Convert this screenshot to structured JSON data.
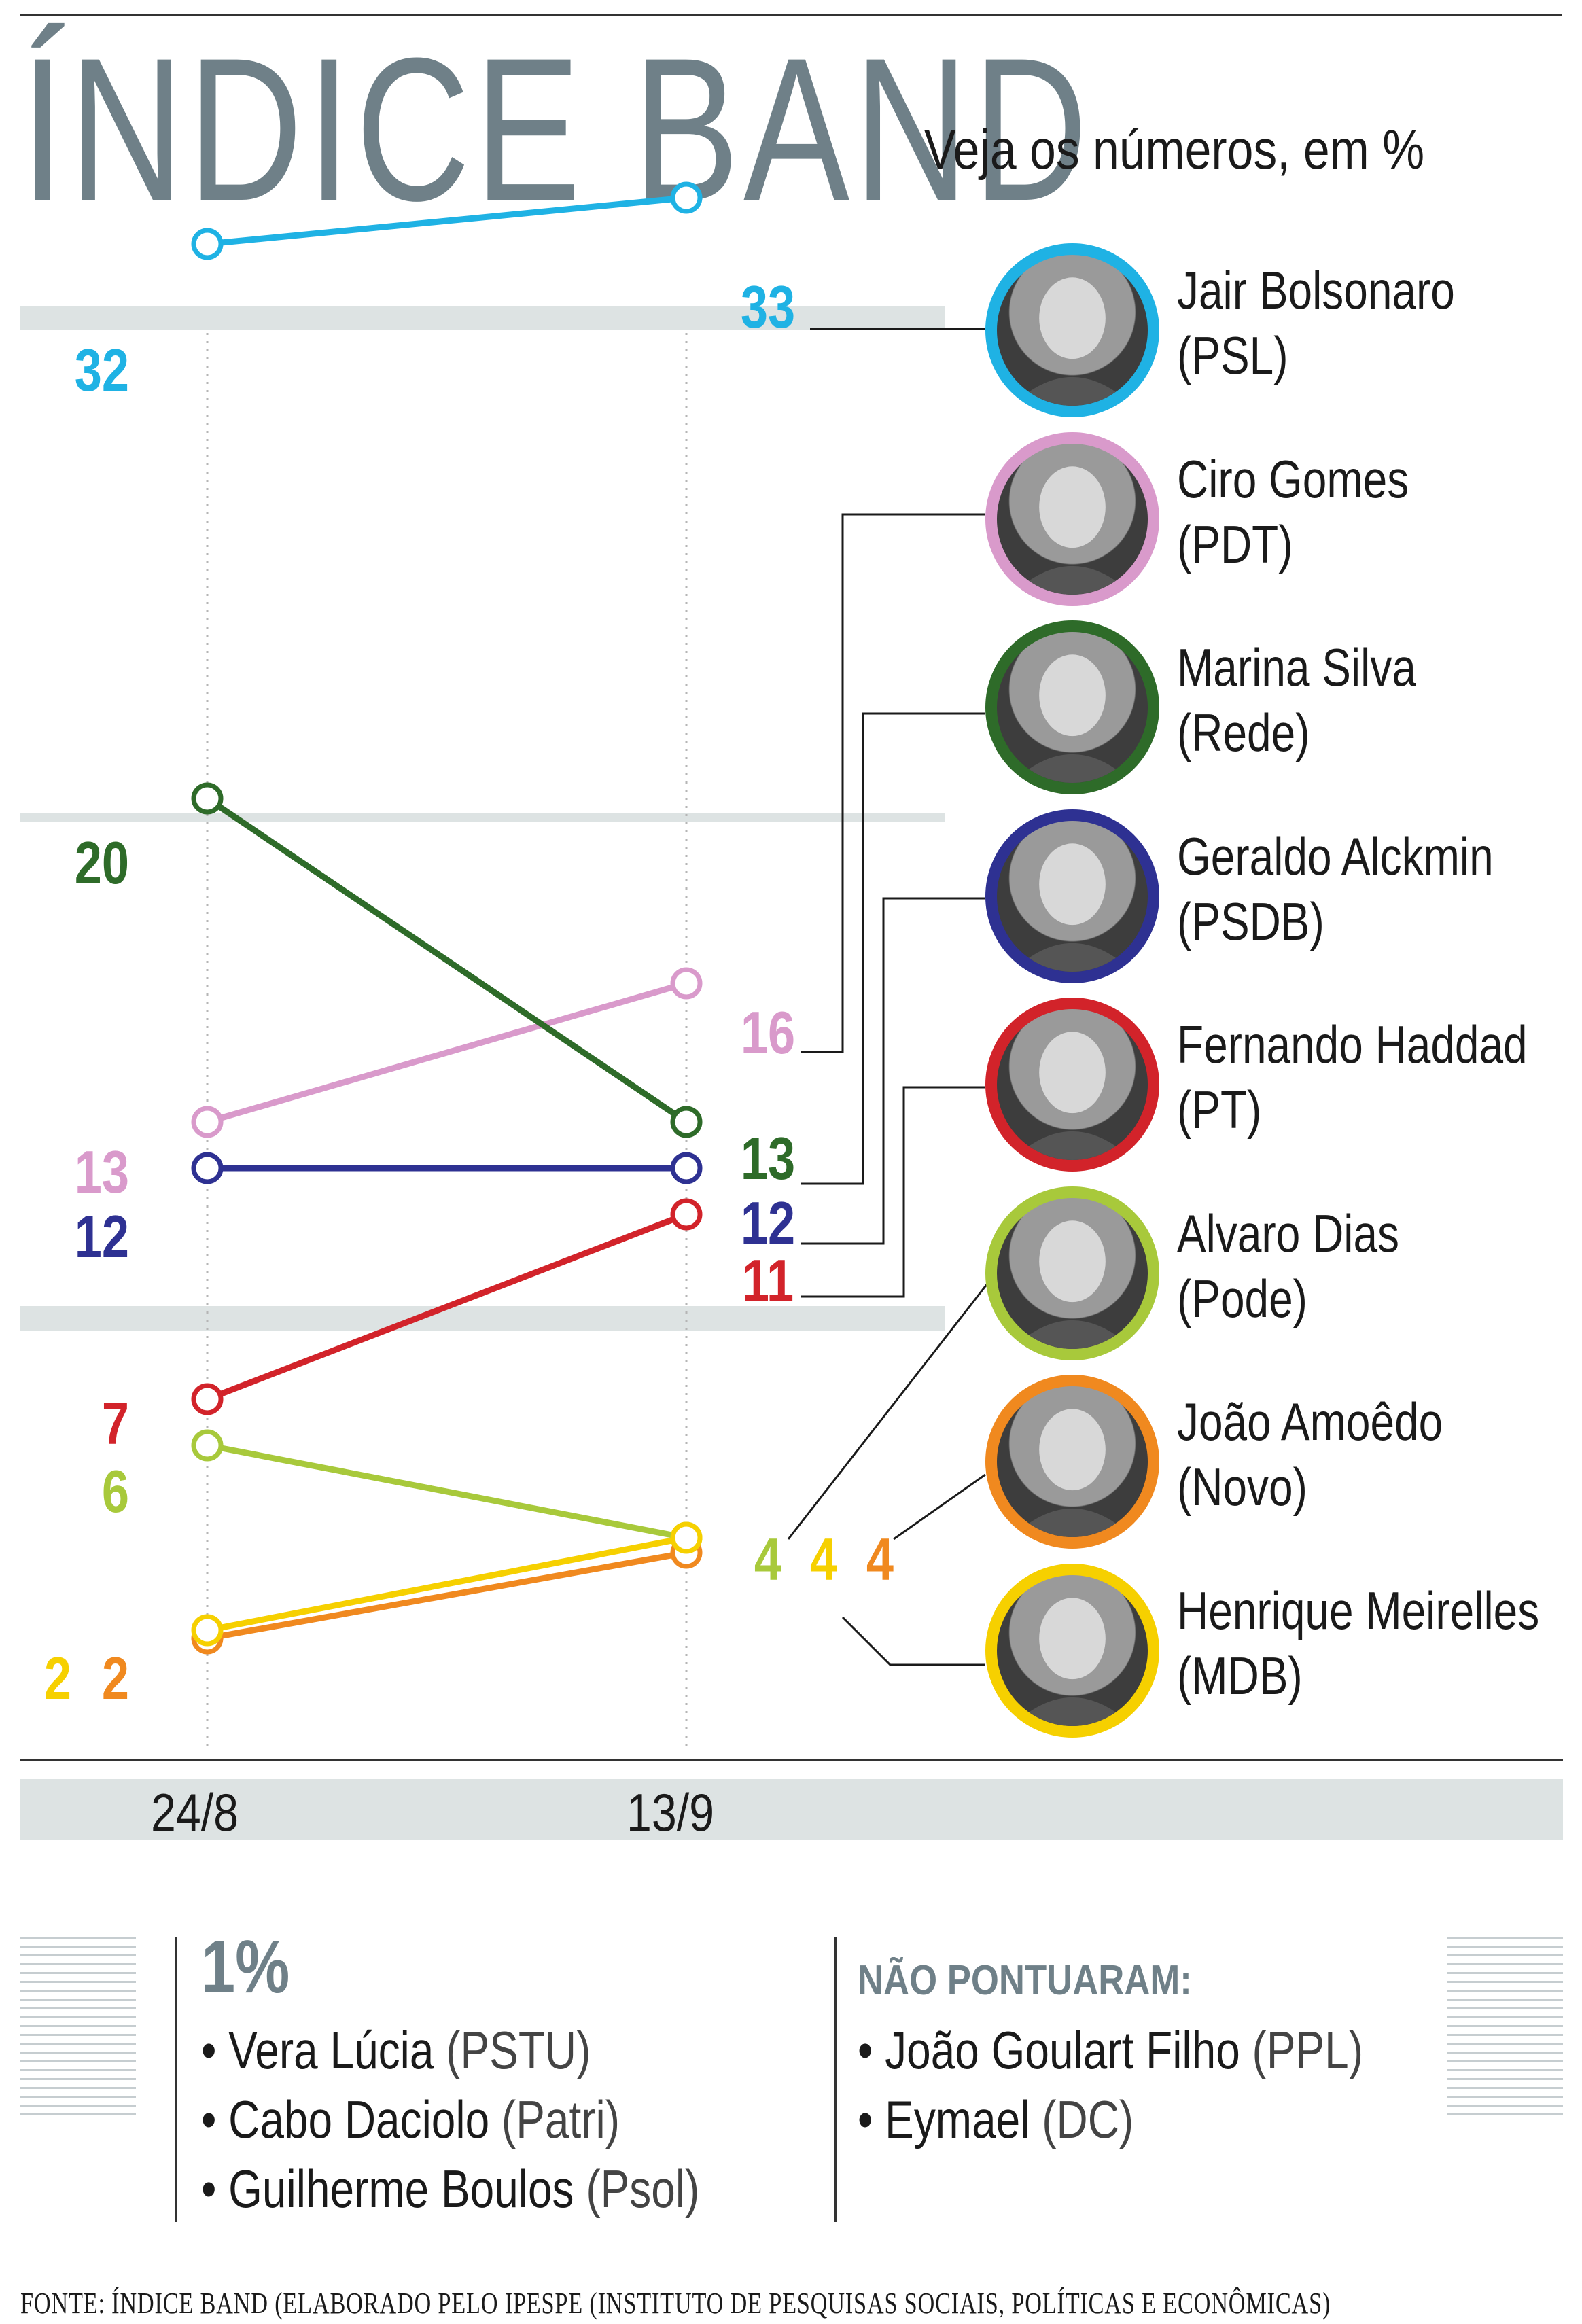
{
  "title": "ÍNDICE BAND",
  "subtitle": "Veja os números, em %",
  "chart_data": {
    "type": "line",
    "unit": "%",
    "categories": [
      "24/8",
      "13/9"
    ],
    "series": [
      {
        "name": "Jair Bolsonaro",
        "party": "(PSL)",
        "color": "#1fb2e4",
        "values": [
          32,
          33
        ],
        "labels": [
          "32",
          "33"
        ]
      },
      {
        "name": "Ciro Gomes",
        "party": "(PDT)",
        "color": "#d99acb",
        "values": [
          13,
          16
        ],
        "labels": [
          "13",
          "16"
        ]
      },
      {
        "name": "Marina Silva",
        "party": "(Rede)",
        "color": "#2e6b29",
        "values": [
          20,
          13
        ],
        "labels": [
          "20",
          "13"
        ]
      },
      {
        "name": "Geraldo Alckmin",
        "party": "(PSDB)",
        "color": "#2e3192",
        "values": [
          12,
          12
        ],
        "labels": [
          "12",
          "12"
        ]
      },
      {
        "name": "Fernando Haddad",
        "party": "(PT)",
        "color": "#d2232a",
        "values": [
          7,
          11
        ],
        "labels": [
          "7",
          "11"
        ]
      },
      {
        "name": "Alvaro Dias",
        "party": "(Pode)",
        "color": "#a8c93b",
        "values": [
          6,
          4
        ],
        "labels": [
          "6",
          "4"
        ]
      },
      {
        "name": "João Amoêdo",
        "party": "(Novo)",
        "color": "#f0891f",
        "values": [
          2,
          4
        ],
        "labels": [
          "2",
          "4"
        ]
      },
      {
        "name": "Henrique Meirelles",
        "party": "(MDB)",
        "color": "#f6d000",
        "values": [
          2,
          4
        ],
        "labels": [
          "2",
          "4"
        ]
      }
    ]
  },
  "notes": {
    "one_pct": {
      "heading": "1%",
      "items": [
        {
          "name": "Vera Lúcia",
          "party": "(PSTU)"
        },
        {
          "name": "Cabo Daciolo",
          "party": "(Patri)"
        },
        {
          "name": "Guilherme Boulos",
          "party": "(Psol)"
        }
      ]
    },
    "zero": {
      "heading": "NÃO PONTUARAM:",
      "items": [
        {
          "name": "João Goulart Filho",
          "party": "(PPL)"
        },
        {
          "name": "Eymael",
          "party": "(DC)"
        }
      ]
    }
  },
  "source": "FONTE: ÍNDICE BAND (ELABORADO PELO IPESPE (INSTITUTO DE PESQUISAS SOCIAIS, POLÍTICAS E ECONÔMICAS)"
}
